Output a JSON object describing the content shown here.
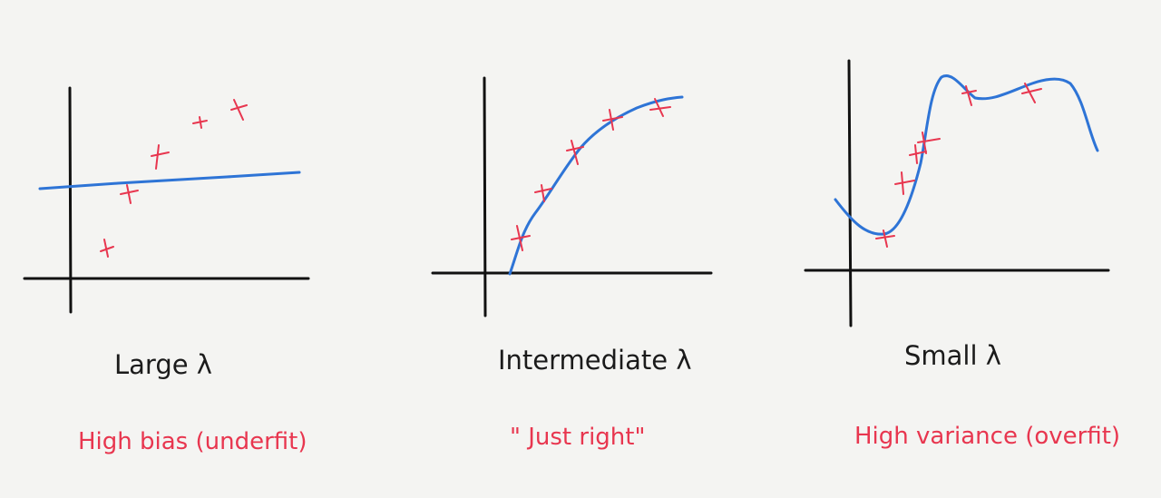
{
  "panels": [
    {
      "caption": "Large λ",
      "verdict": "High bias (underfit)"
    },
    {
      "caption": "Intermediate λ",
      "verdict": "\" Just right\""
    },
    {
      "caption": "Small λ",
      "verdict": "High variance (overfit)"
    }
  ],
  "colors": {
    "axis": "#111111",
    "fit_line": "#2e74d6",
    "data_mark": "#e8364f",
    "caption": "#1b1b1b",
    "verdict": "#e8364f",
    "background": "#f4f4f2"
  }
}
